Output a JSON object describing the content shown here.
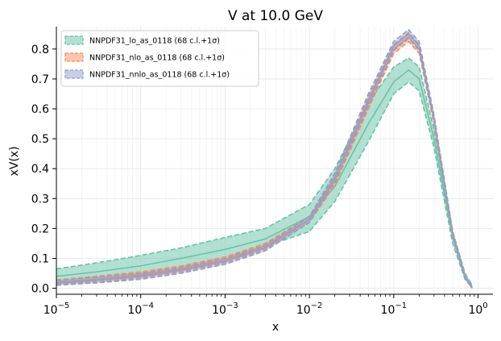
{
  "chart_data": {
    "type": "line",
    "title": "V at 10.0 GeV",
    "xlabel": "x",
    "ylabel": "xV(x)",
    "xscale": "log",
    "xlim": [
      1e-05,
      1.5
    ],
    "ylim": [
      -0.02,
      0.875
    ],
    "grid": true,
    "legend_position": "top-left",
    "x_ticks": [
      1e-05,
      0.0001,
      0.001,
      0.01,
      0.1,
      1
    ],
    "x_tick_labels": [
      {
        "base": "10",
        "exp": "−5"
      },
      {
        "base": "10",
        "exp": "−4"
      },
      {
        "base": "10",
        "exp": "−3"
      },
      {
        "base": "10",
        "exp": "−2"
      },
      {
        "base": "10",
        "exp": "−1"
      },
      {
        "base": "10",
        "exp": "0"
      }
    ],
    "y_ticks": [
      0.0,
      0.1,
      0.2,
      0.3,
      0.4,
      0.5,
      0.6,
      0.7,
      0.8
    ],
    "y_tick_labels": [
      "0.0",
      "0.1",
      "0.2",
      "0.3",
      "0.4",
      "0.5",
      "0.6",
      "0.7",
      "0.8"
    ],
    "x": [
      1e-05,
      3e-05,
      0.0001,
      0.0003,
      0.001,
      0.003,
      0.01,
      0.02,
      0.05,
      0.1,
      0.15,
      0.2,
      0.3,
      0.5,
      0.7,
      0.85
    ],
    "series": [
      {
        "name": "NNPDF31_lo_as_0118 (68 c.l.+1σ)",
        "color": "#66c2a5",
        "central": [
          0.04,
          0.055,
          0.075,
          0.1,
          0.13,
          0.165,
          0.24,
          0.34,
          0.55,
          0.69,
          0.73,
          0.7,
          0.5,
          0.17,
          0.04,
          0.005
        ],
        "lower": [
          0.015,
          0.025,
          0.04,
          0.06,
          0.09,
          0.14,
          0.19,
          0.29,
          0.49,
          0.65,
          0.69,
          0.66,
          0.47,
          0.15,
          0.03,
          0.0
        ],
        "upper": [
          0.065,
          0.085,
          0.11,
          0.135,
          0.17,
          0.2,
          0.28,
          0.4,
          0.62,
          0.74,
          0.77,
          0.74,
          0.53,
          0.19,
          0.05,
          0.01
        ]
      },
      {
        "name": "NNPDF31_nlo_as_0118 (68 c.l.+1σ)",
        "color": "#fc8d62",
        "central": [
          0.02,
          0.03,
          0.045,
          0.065,
          0.095,
          0.14,
          0.23,
          0.36,
          0.62,
          0.8,
          0.84,
          0.8,
          0.56,
          0.18,
          0.04,
          0.005
        ],
        "lower": [
          0.012,
          0.02,
          0.035,
          0.055,
          0.085,
          0.13,
          0.22,
          0.345,
          0.6,
          0.785,
          0.825,
          0.785,
          0.55,
          0.17,
          0.035,
          0.0
        ],
        "upper": [
          0.028,
          0.04,
          0.055,
          0.075,
          0.105,
          0.15,
          0.24,
          0.375,
          0.64,
          0.815,
          0.855,
          0.815,
          0.57,
          0.19,
          0.045,
          0.01
        ]
      },
      {
        "name": "NNPDF31_nnlo_as_0118 (68 c.l.+1σ)",
        "color": "#8da0cb",
        "central": [
          0.018,
          0.028,
          0.04,
          0.06,
          0.09,
          0.135,
          0.23,
          0.37,
          0.63,
          0.81,
          0.85,
          0.81,
          0.57,
          0.18,
          0.04,
          0.005
        ],
        "lower": [
          0.01,
          0.018,
          0.03,
          0.05,
          0.08,
          0.125,
          0.22,
          0.355,
          0.61,
          0.795,
          0.835,
          0.795,
          0.56,
          0.17,
          0.035,
          0.0
        ],
        "upper": [
          0.026,
          0.038,
          0.05,
          0.07,
          0.1,
          0.145,
          0.24,
          0.385,
          0.65,
          0.825,
          0.865,
          0.825,
          0.58,
          0.19,
          0.045,
          0.01
        ]
      }
    ]
  }
}
